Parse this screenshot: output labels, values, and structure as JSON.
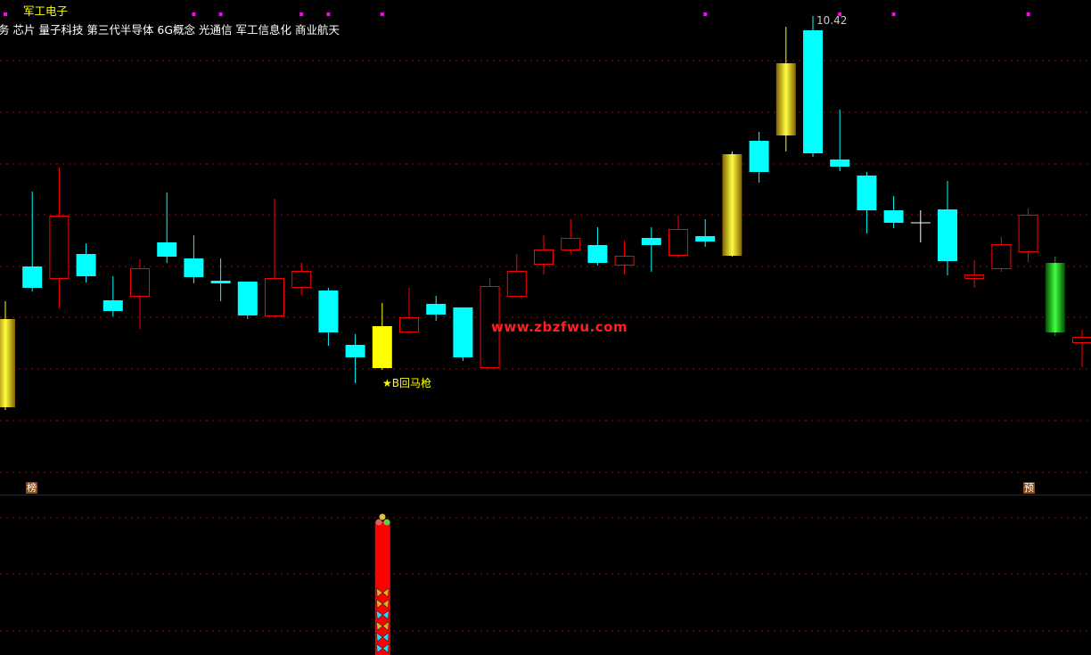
{
  "header": {
    "concepts_text": "务 芯片 量子科技 第三代半导体 6G概念 光通信 军工信息化 商业航天",
    "overlay_text": "军工电子"
  },
  "annotations": {
    "high_label": "10.42",
    "signal_label": "★B回马枪",
    "watermark": "www.zbzfwu.com",
    "left_tag": "榜",
    "right_tag": "预"
  },
  "colors": {
    "background": "#000000",
    "down": "#00ffff",
    "up": "#ff0000",
    "special_yellow": "#ffff00",
    "special_green": "#00c000",
    "grid": "#aa0000",
    "marker": "#ff00ff"
  },
  "chart_data": {
    "type": "candlestick",
    "gridlines": [
      9.92,
      9.34,
      8.76,
      8.19,
      7.61,
      7.04,
      6.46,
      5.88,
      5.3
    ],
    "marker_indices": [
      0,
      7,
      8,
      11,
      12,
      14,
      26,
      31,
      33,
      38
    ],
    "signal_index": 14,
    "candles": [
      {
        "o": 6.03,
        "h": 7.22,
        "l": 6.0,
        "c": 7.02,
        "s": "y"
      },
      {
        "o": 7.61,
        "h": 8.45,
        "l": 7.33,
        "c": 7.37,
        "s": "c"
      },
      {
        "o": 7.48,
        "h": 8.72,
        "l": 7.14,
        "c": 8.18,
        "s": "r"
      },
      {
        "o": 7.75,
        "h": 7.87,
        "l": 7.43,
        "c": 7.5,
        "s": "c"
      },
      {
        "o": 7.23,
        "h": 7.5,
        "l": 7.05,
        "c": 7.11,
        "s": "c"
      },
      {
        "o": 7.28,
        "h": 7.69,
        "l": 6.91,
        "c": 7.59,
        "s": "r"
      },
      {
        "o": 7.88,
        "h": 8.44,
        "l": 7.65,
        "c": 7.72,
        "s": "c"
      },
      {
        "o": 7.7,
        "h": 7.96,
        "l": 7.42,
        "c": 7.49,
        "s": "c"
      },
      {
        "o": 7.45,
        "h": 7.7,
        "l": 7.22,
        "c": 7.42,
        "s": "c"
      },
      {
        "o": 7.44,
        "h": 7.44,
        "l": 7.02,
        "c": 7.06,
        "s": "c"
      },
      {
        "o": 7.06,
        "h": 8.37,
        "l": 7.04,
        "c": 7.48,
        "s": "r"
      },
      {
        "o": 7.38,
        "h": 7.65,
        "l": 7.29,
        "c": 7.56,
        "s": "r"
      },
      {
        "o": 7.34,
        "h": 7.37,
        "l": 6.72,
        "c": 6.87,
        "s": "c"
      },
      {
        "o": 6.73,
        "h": 6.85,
        "l": 6.3,
        "c": 6.59,
        "s": "c"
      },
      {
        "o": 6.47,
        "h": 7.2,
        "l": 6.45,
        "c": 6.94,
        "s": "y"
      },
      {
        "o": 6.88,
        "h": 7.37,
        "l": 6.88,
        "c": 7.04,
        "s": "r"
      },
      {
        "o": 7.19,
        "h": 7.28,
        "l": 7.0,
        "c": 7.07,
        "s": "c"
      },
      {
        "o": 7.15,
        "h": 7.15,
        "l": 6.55,
        "c": 6.59,
        "s": "c"
      },
      {
        "o": 6.48,
        "h": 7.48,
        "l": 6.48,
        "c": 7.39,
        "s": "r"
      },
      {
        "o": 7.28,
        "h": 7.75,
        "l": 7.28,
        "c": 7.56,
        "s": "r"
      },
      {
        "o": 7.64,
        "h": 7.96,
        "l": 7.52,
        "c": 7.8,
        "s": "r"
      },
      {
        "o": 7.8,
        "h": 8.14,
        "l": 7.75,
        "c": 7.93,
        "s": "r"
      },
      {
        "o": 7.85,
        "h": 8.05,
        "l": 7.62,
        "c": 7.65,
        "s": "c"
      },
      {
        "o": 7.63,
        "h": 7.9,
        "l": 7.52,
        "c": 7.73,
        "s": "r"
      },
      {
        "o": 7.93,
        "h": 8.05,
        "l": 7.55,
        "c": 7.85,
        "s": "c"
      },
      {
        "o": 7.74,
        "h": 8.18,
        "l": 7.71,
        "c": 8.03,
        "s": "r"
      },
      {
        "o": 7.95,
        "h": 8.14,
        "l": 7.83,
        "c": 7.89,
        "s": "c"
      },
      {
        "o": 7.73,
        "h": 8.9,
        "l": 7.72,
        "c": 8.87,
        "s": "y"
      },
      {
        "o": 9.02,
        "h": 9.12,
        "l": 8.55,
        "c": 8.67,
        "s": "c"
      },
      {
        "o": 9.08,
        "h": 10.3,
        "l": 8.9,
        "c": 9.89,
        "s": "y"
      },
      {
        "o": 10.26,
        "h": 10.42,
        "l": 8.84,
        "c": 8.88,
        "s": "c"
      },
      {
        "o": 8.81,
        "h": 9.37,
        "l": 8.68,
        "c": 8.73,
        "s": "c"
      },
      {
        "o": 8.63,
        "h": 8.67,
        "l": 7.98,
        "c": 8.24,
        "s": "c"
      },
      {
        "o": 8.24,
        "h": 8.4,
        "l": 8.04,
        "c": 8.1,
        "s": "c"
      },
      {
        "o": 8.1,
        "h": 8.24,
        "l": 7.88,
        "c": 8.1,
        "s": "w"
      },
      {
        "o": 8.25,
        "h": 8.57,
        "l": 7.51,
        "c": 7.67,
        "s": "c"
      },
      {
        "o": 7.48,
        "h": 7.68,
        "l": 7.37,
        "c": 7.52,
        "s": "r"
      },
      {
        "o": 7.59,
        "h": 7.94,
        "l": 7.55,
        "c": 7.86,
        "s": "r"
      },
      {
        "o": 7.78,
        "h": 8.26,
        "l": 7.66,
        "c": 8.19,
        "s": "r"
      },
      {
        "o": 6.87,
        "h": 7.72,
        "l": 6.83,
        "c": 7.65,
        "s": "g"
      },
      {
        "o": 6.76,
        "h": 6.9,
        "l": 6.48,
        "c": 6.82,
        "s": "r"
      }
    ],
    "indicator": {
      "bar_index": 14,
      "icons": [
        "butterfly-yellow",
        "butterfly-yellow",
        "butterfly-cyan",
        "butterfly-yellow",
        "butterfly-cyan",
        "butterfly-cyan"
      ]
    }
  }
}
